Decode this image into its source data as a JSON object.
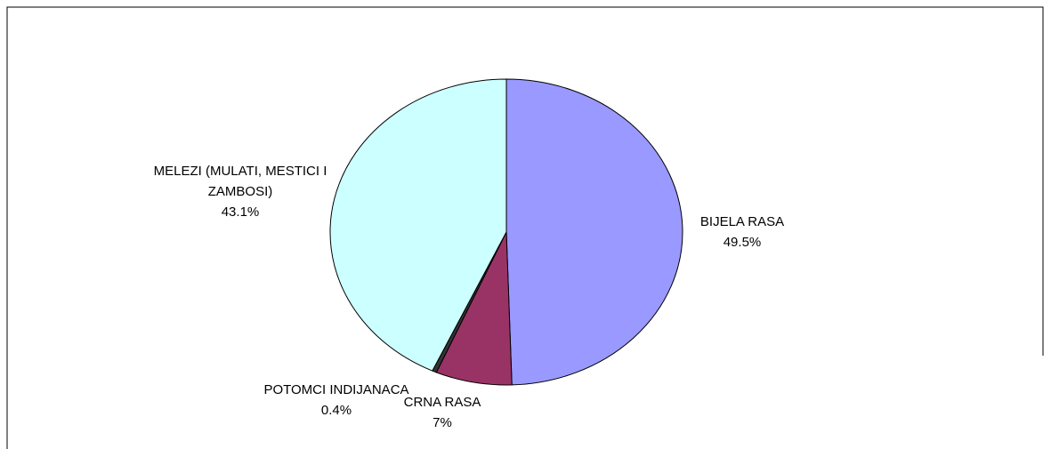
{
  "chart_data": {
    "type": "pie",
    "categories": [
      "BIJELA RASA",
      "CRNA RASA",
      "POTOMCI INDIJANACA",
      "MELEZI (MULATI, MESTICI I ZAMBOSI)"
    ],
    "values": [
      49.5,
      7,
      0.4,
      43.1
    ],
    "value_labels": [
      "49.5%",
      "7%",
      "0.4%",
      "43.1%"
    ],
    "colors": [
      "#9999ff",
      "#993366",
      "#333333",
      "#ccffff"
    ]
  }
}
